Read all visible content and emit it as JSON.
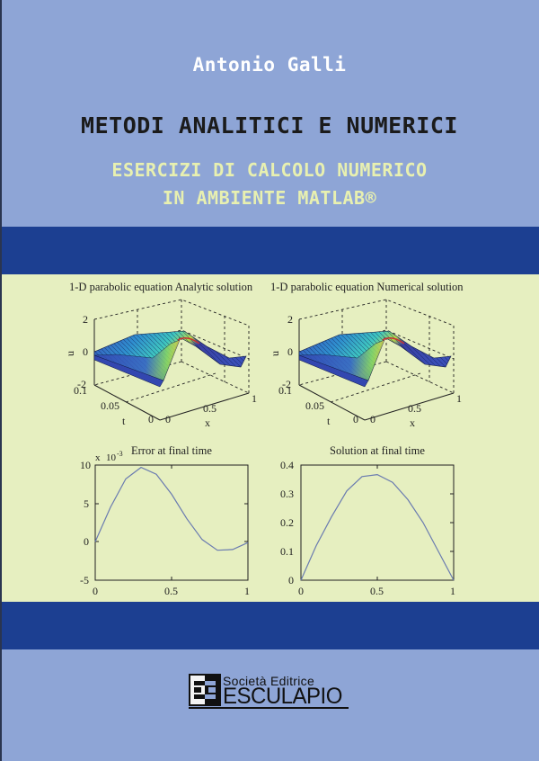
{
  "cover": {
    "author": "Antonio Galli",
    "title": "METODI ANALITICI E NUMERICI",
    "subtitle_line1": "ESERCIZI DI CALCOLO NUMERICO",
    "subtitle_line2": "IN AMBIENTE MATLAB®",
    "colors": {
      "light_blue": "#8ea5d6",
      "dark_blue": "#1c3f91",
      "panel_green": "#e6efc0",
      "subtitle_yellow": "#e8f0b0",
      "title_black": "#1b1b1b",
      "author_white": "#ffffff"
    }
  },
  "publisher": {
    "logo_glyph": "EE",
    "line1": "Società Editrice",
    "line2": "ESCULAPIO"
  },
  "chart_data": [
    {
      "type": "surface",
      "title": "1-D parabolic equation Analytic solution",
      "xlabel": "x",
      "ylabel": "t",
      "zlabel": "u",
      "x_ticks": [
        "0",
        "0.5",
        "1"
      ],
      "y_ticks": [
        "0",
        "0.05",
        "0.1"
      ],
      "z_ticks": [
        "-2",
        "0",
        "2"
      ],
      "xlim": [
        0,
        1
      ],
      "ylim": [
        0,
        0.1
      ],
      "zlim": [
        -2,
        2
      ],
      "colormap": "jet",
      "grid": true
    },
    {
      "type": "surface",
      "title": "1-D parabolic equation Numerical solution",
      "xlabel": "x",
      "ylabel": "t",
      "zlabel": "u",
      "x_ticks": [
        "0",
        "0.5",
        "1"
      ],
      "y_ticks": [
        "0",
        "0.05",
        "0.1"
      ],
      "z_ticks": [
        "-2",
        "0",
        "2"
      ],
      "xlim": [
        0,
        1
      ],
      "ylim": [
        0,
        0.1
      ],
      "zlim": [
        -2,
        2
      ],
      "colormap": "jet",
      "grid": true
    },
    {
      "type": "line",
      "title": "Error at final time",
      "scale_annotation": "x 10-3",
      "x": [
        0,
        0.1,
        0.2,
        0.3,
        0.4,
        0.5,
        0.6,
        0.7,
        0.8,
        0.9,
        1.0
      ],
      "values": [
        0,
        4.5,
        8.2,
        9.7,
        8.8,
        6.2,
        3.0,
        0.3,
        -1.1,
        -1.0,
        -0.1
      ],
      "x_ticks": [
        "0",
        "0.5",
        "1"
      ],
      "y_ticks": [
        "-5",
        "0",
        "5",
        "10"
      ],
      "xlim": [
        0,
        1
      ],
      "ylim": [
        -5,
        10
      ],
      "xlabel": "",
      "ylabel": ""
    },
    {
      "type": "line",
      "title": "Solution at final time",
      "x": [
        0,
        0.1,
        0.2,
        0.3,
        0.4,
        0.5,
        0.6,
        0.7,
        0.8,
        0.9,
        1.0
      ],
      "values": [
        0,
        0.12,
        0.22,
        0.31,
        0.36,
        0.367,
        0.34,
        0.28,
        0.2,
        0.1,
        0
      ],
      "x_ticks": [
        "0",
        "0.5",
        "1"
      ],
      "y_ticks": [
        "0",
        "0.1",
        "0.2",
        "0.3",
        "0.4"
      ],
      "xlim": [
        0,
        1
      ],
      "ylim": [
        0,
        0.4
      ],
      "xlabel": "",
      "ylabel": ""
    }
  ]
}
